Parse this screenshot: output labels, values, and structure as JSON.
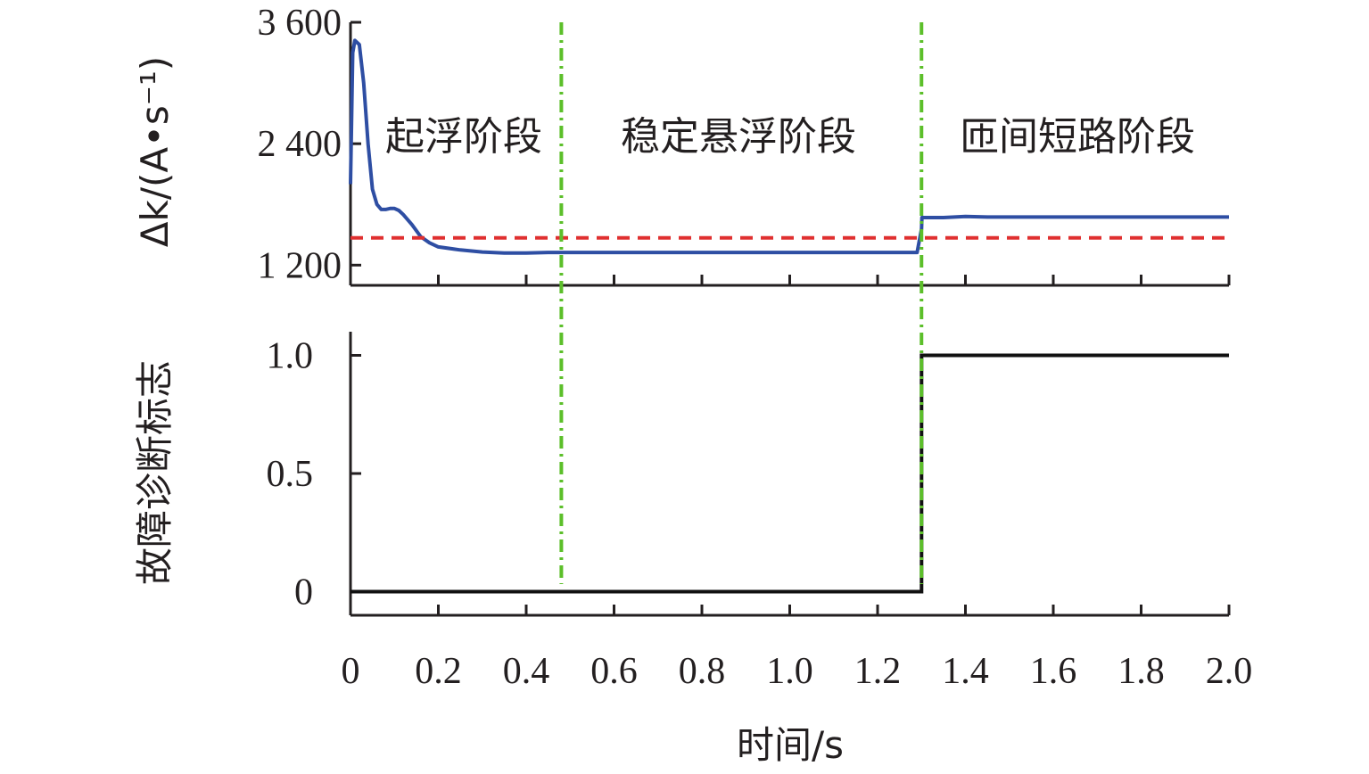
{
  "chart_data": [
    {
      "type": "line",
      "ylabel": "Δk/(A•s⁻¹)",
      "xlim": [
        0,
        2.0
      ],
      "ylim": [
        1000,
        3600
      ],
      "y_ticks": [
        1200,
        2400,
        3600
      ],
      "y_tick_labels": [
        "1 200",
        "2 400",
        "3 600"
      ],
      "phase_labels": [
        "起浮阶段",
        "稳定悬浮阶段",
        "匝间短路阶段"
      ],
      "phase_boundaries": [
        0.48,
        1.3
      ],
      "colors": {
        "actual": "#2e4ea3",
        "threshold": "#e03030",
        "boundary": "#5cbf2a"
      },
      "series": [
        {
          "style": "solid",
          "x": [
            0,
            0.005,
            0.01,
            0.02,
            0.03,
            0.04,
            0.05,
            0.06,
            0.07,
            0.08,
            0.09,
            0.1,
            0.11,
            0.12,
            0.14,
            0.16,
            0.18,
            0.2,
            0.25,
            0.3,
            0.35,
            0.4,
            0.45,
            0.5,
            0.6,
            0.8,
            1.0,
            1.2,
            1.29,
            1.3,
            1.301,
            1.35,
            1.4,
            1.45,
            1.5,
            1.7,
            2.0
          ],
          "values": [
            2000,
            3300,
            3420,
            3380,
            3000,
            2400,
            1950,
            1800,
            1750,
            1750,
            1760,
            1760,
            1740,
            1700,
            1600,
            1480,
            1420,
            1380,
            1350,
            1330,
            1320,
            1320,
            1325,
            1325,
            1325,
            1325,
            1325,
            1325,
            1325,
            1560,
            1670,
            1670,
            1680,
            1675,
            1675,
            1675,
            1675
          ]
        },
        {
          "style": "dashed",
          "x": [
            0,
            2.0
          ],
          "values": [
            1470,
            1470
          ]
        }
      ]
    },
    {
      "type": "line",
      "ylabel": "故障诊断标志",
      "xlabel": "时间/s",
      "xlim": [
        0,
        2.0
      ],
      "ylim": [
        -0.1,
        1.1
      ],
      "y_ticks": [
        0,
        0.5,
        1.0
      ],
      "y_tick_labels": [
        "0",
        "0.5",
        "1.0"
      ],
      "x_ticks": [
        0,
        0.2,
        0.4,
        0.6,
        0.8,
        1.0,
        1.2,
        1.4,
        1.6,
        1.8,
        2.0
      ],
      "x_tick_labels": [
        "0",
        "0.2",
        "0.4",
        "0.6",
        "0.8",
        "1.0",
        "1.2",
        "1.4",
        "1.6",
        "1.8",
        "2.0"
      ],
      "colors": {
        "flag": "#111111"
      },
      "series": [
        {
          "style": "step",
          "x": [
            0,
            1.3,
            1.3,
            2.0
          ],
          "values": [
            0,
            0,
            1,
            1
          ]
        }
      ]
    }
  ]
}
